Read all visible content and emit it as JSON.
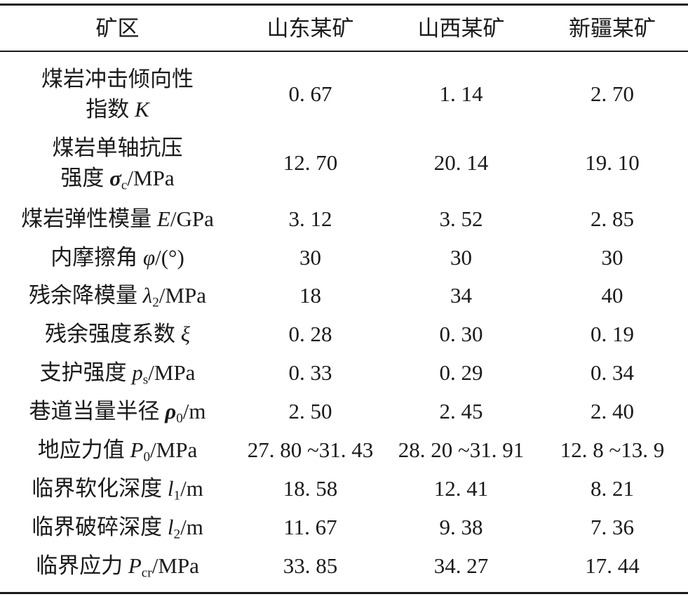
{
  "table": {
    "headers": [
      "矿区",
      "山东某矿",
      "山西某矿",
      "新疆某矿"
    ],
    "rows": [
      {
        "label_line1": "煤岩冲击倾向性",
        "label_text": "指数 ",
        "label_sym": "K",
        "values": [
          "0. 67",
          "1. 14",
          "2. 70"
        ]
      },
      {
        "label_line1": "煤岩单轴抗压",
        "label_text": "强度 ",
        "label_sym": "σ",
        "label_sub": "c",
        "label_unit": "/MPa",
        "values": [
          "12. 70",
          "20. 14",
          "19. 10"
        ]
      },
      {
        "label_text": "煤岩弹性模量 ",
        "label_sym": "E",
        "label_unit": "/GPa",
        "values": [
          "3. 12",
          "3. 52",
          "2. 85"
        ]
      },
      {
        "label_text": "内摩擦角 ",
        "label_sym": "φ",
        "label_unit": "/(°)",
        "values": [
          "30",
          "30",
          "30"
        ]
      },
      {
        "label_text": "残余降模量 ",
        "label_sym": "λ",
        "label_sub": "2",
        "label_unit": "/MPa",
        "values": [
          "18",
          "34",
          "40"
        ]
      },
      {
        "label_text": "残余强度系数 ",
        "label_sym": "ξ",
        "values": [
          "0. 28",
          "0. 30",
          "0. 19"
        ]
      },
      {
        "label_text": "支护强度 ",
        "label_sym": "p",
        "label_sub": "s",
        "label_unit": "/MPa",
        "values": [
          "0. 33",
          "0. 29",
          "0. 34"
        ]
      },
      {
        "label_text": "巷道当量半径 ",
        "label_sym": "ρ",
        "label_sub": "0",
        "label_unit": "/m",
        "values": [
          "2. 50",
          "2. 45",
          "2. 40"
        ]
      },
      {
        "label_text": "地应力值 ",
        "label_sym": "P",
        "label_sub": "0",
        "label_unit": "/MPa",
        "values": [
          "27. 80 ~31. 43",
          "28. 20 ~31. 91",
          "12. 8 ~13. 9"
        ]
      },
      {
        "label_text": "临界软化深度 ",
        "label_sym": "l",
        "label_sub": "1",
        "label_unit": "/m",
        "values": [
          "18. 58",
          "12. 41",
          "8. 21"
        ]
      },
      {
        "label_text": "临界破碎深度 ",
        "label_sym": "l",
        "label_sub": "2",
        "label_unit": "/m",
        "values": [
          "11. 67",
          "9. 38",
          "7. 36"
        ]
      },
      {
        "label_text": "临界应力 ",
        "label_sym": "P",
        "label_sub": "cr",
        "label_unit": "/MPa",
        "values": [
          "33. 85",
          "34. 27",
          "17. 44"
        ]
      }
    ]
  }
}
